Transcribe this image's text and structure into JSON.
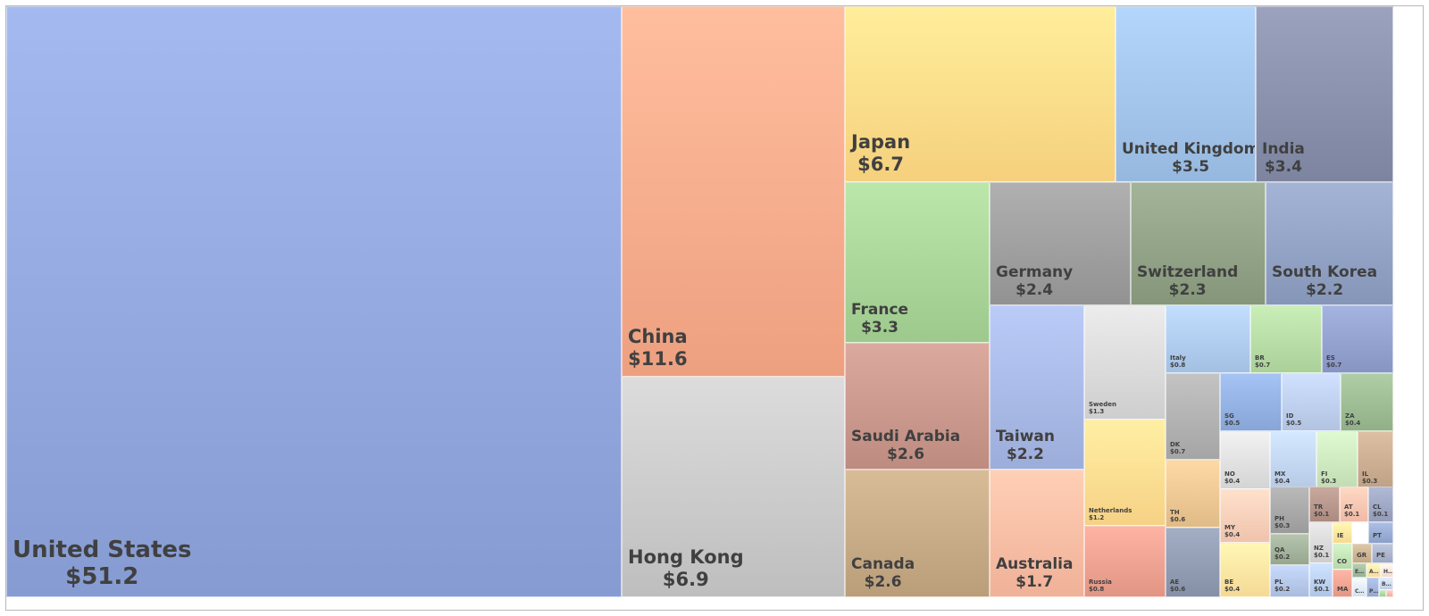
{
  "chart_data": {
    "type": "treemap",
    "title": "",
    "value_prefix": "$",
    "items": [
      {
        "name": "United States",
        "value": 51.2,
        "color": "#8ea3da"
      },
      {
        "name": "China",
        "value": 11.6,
        "color": "#f5a888"
      },
      {
        "name": "Hong Kong",
        "value": 6.9,
        "color": "#c6c6c6"
      },
      {
        "name": "Japan",
        "value": 6.7,
        "color": "#fdd885"
      },
      {
        "name": "United Kingdom",
        "value": 3.5,
        "color": "#9ec0e6"
      },
      {
        "name": "India",
        "value": 3.4,
        "color": "#858ca8"
      },
      {
        "name": "France",
        "value": 3.3,
        "color": "#a5d195"
      },
      {
        "name": "Germany",
        "value": 2.4,
        "color": "#9a9a9a"
      },
      {
        "name": "Switzerland",
        "value": 2.3,
        "color": "#8d9e82"
      },
      {
        "name": "South Korea",
        "value": 2.2,
        "color": "#8d9ec0"
      },
      {
        "name": "Saudi Arabia",
        "value": 2.6,
        "color": "#c69388"
      },
      {
        "name": "Taiwan",
        "value": 2.2,
        "color": "#a5b5e2"
      },
      {
        "name": "Canada",
        "value": 2.6,
        "color": "#c2a682"
      },
      {
        "name": "Australia",
        "value": 1.7,
        "color": "#f8b9a0"
      },
      {
        "name": "Sweden",
        "value": 1.3,
        "color": "#d6d6d6"
      },
      {
        "name": "Netherlands",
        "value": 1.2,
        "color": "#fed98d"
      },
      {
        "name": "Russia",
        "value": 0.8,
        "color": "#e99d8c"
      },
      {
        "name": "Italy",
        "value": 0.8,
        "color": "#abc8ea"
      },
      {
        "name": "BR",
        "value": 0.7,
        "color": "#b3d8a2"
      },
      {
        "name": "ES",
        "value": 0.7,
        "color": "#8f9dcb"
      },
      {
        "name": "DK",
        "value": 0.7,
        "color": "#adadad"
      },
      {
        "name": "TH",
        "value": 0.6,
        "color": "#e8c38f"
      },
      {
        "name": "AE",
        "value": 0.6,
        "color": "#8d97ad"
      },
      {
        "name": "SG",
        "value": 0.5,
        "color": "#8fadde"
      },
      {
        "name": "ID",
        "value": 0.5,
        "color": "#bacbea"
      },
      {
        "name": "ZA",
        "value": 0.4,
        "color": "#99b890"
      },
      {
        "name": "NO",
        "value": 0.4,
        "color": "#dcdcdc"
      },
      {
        "name": "MX",
        "value": 0.4,
        "color": "#bed2ee"
      },
      {
        "name": "FI",
        "value": 0.3,
        "color": "#c9e4bb"
      },
      {
        "name": "IL",
        "value": 0.3,
        "color": "#c7a98e"
      },
      {
        "name": "MY",
        "value": 0.4,
        "color": "#f7cbb5"
      },
      {
        "name": "BE",
        "value": 0.4,
        "color": "#fde19e"
      },
      {
        "name": "PH",
        "value": 0.3,
        "color": "#a3a3a3"
      },
      {
        "name": "QA",
        "value": 0.2,
        "color": "#9fae96"
      },
      {
        "name": "PL",
        "value": 0.2,
        "color": "#b2c4e6"
      },
      {
        "name": "TR",
        "value": 0.1,
        "color": "#b39287"
      },
      {
        "name": "AT",
        "value": 0.1,
        "color": "#f8c2ad"
      },
      {
        "name": "CL",
        "value": 0.1,
        "color": "#9aa3bf"
      },
      {
        "name": "NZ",
        "value": 0.1,
        "color": "#d5d5d5"
      },
      {
        "name": "KW",
        "value": 0.1,
        "color": "#b7cdee"
      },
      {
        "name": "MA",
        "value": null,
        "color": "#ec9f8f"
      },
      {
        "name": "IE",
        "value": null,
        "color": "#fde29a"
      },
      {
        "name": "CO",
        "value": null,
        "color": "#bfe0b2"
      },
      {
        "name": "GR",
        "value": null,
        "color": "#c9b08f"
      },
      {
        "name": "PT",
        "value": null,
        "color": "#94a8d0"
      },
      {
        "name": "PE",
        "value": null,
        "color": "#a6b0c8"
      },
      {
        "name": "E…",
        "value": null,
        "color": "#9db99a"
      },
      {
        "name": "A…",
        "value": null,
        "color": "#fde3a8"
      },
      {
        "name": "H…",
        "value": null,
        "color": "#fbe3da"
      },
      {
        "name": "C…",
        "value": null,
        "color": "#dfe7f6"
      },
      {
        "name": "P…",
        "value": null,
        "color": "#9db0d8"
      },
      {
        "name": "B…",
        "value": null,
        "color": "#c9d5ee"
      },
      {
        "name": "",
        "value": null,
        "color": "#a9d59a"
      },
      {
        "name": "",
        "value": null,
        "color": "#f4b6a9"
      }
    ]
  }
}
